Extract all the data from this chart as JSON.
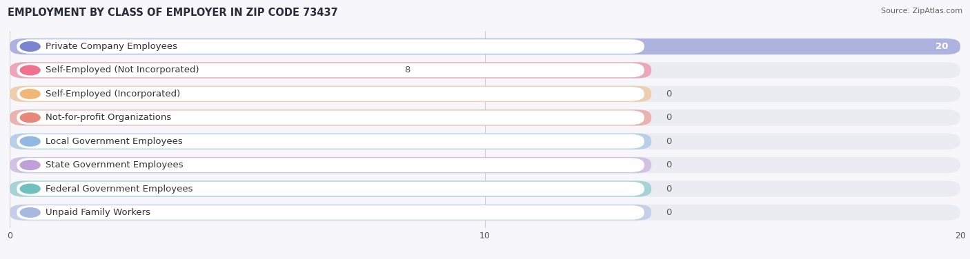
{
  "title": "EMPLOYMENT BY CLASS OF EMPLOYER IN ZIP CODE 73437",
  "source": "Source: ZipAtlas.com",
  "categories": [
    "Private Company Employees",
    "Self-Employed (Not Incorporated)",
    "Self-Employed (Incorporated)",
    "Not-for-profit Organizations",
    "Local Government Employees",
    "State Government Employees",
    "Federal Government Employees",
    "Unpaid Family Workers"
  ],
  "values": [
    20,
    8,
    0,
    0,
    0,
    0,
    0,
    0
  ],
  "bar_colors": [
    "#7b84d0",
    "#f07090",
    "#f0b878",
    "#e88878",
    "#90b8e0",
    "#c0a0d8",
    "#70c0c0",
    "#a8b8e0"
  ],
  "xlim": [
    0,
    20
  ],
  "xticks": [
    0,
    10,
    20
  ],
  "background_color": "#f7f7fb",
  "row_bg_color": "#ebebf2",
  "title_fontsize": 10.5,
  "label_fontsize": 9.5,
  "value_fontsize": 9.5
}
